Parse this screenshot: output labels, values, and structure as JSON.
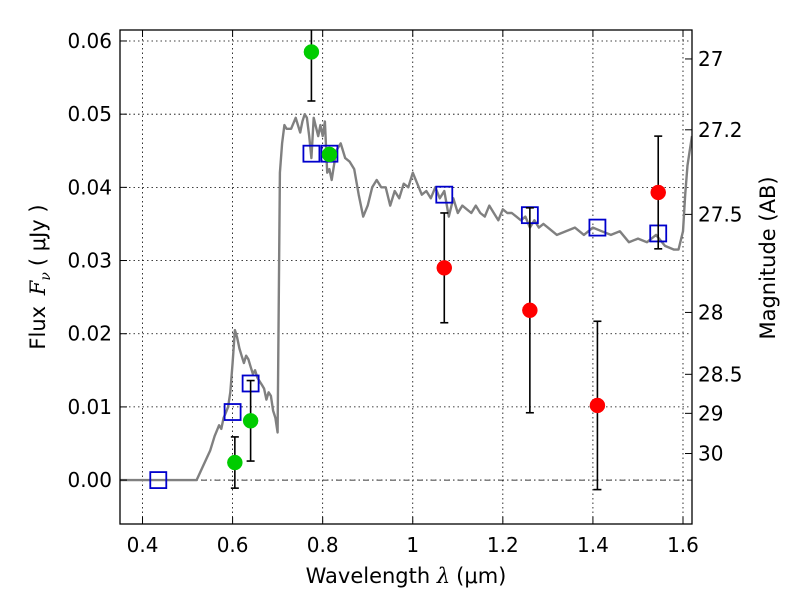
{
  "chart_data": {
    "type": "scatter",
    "xlabel": {
      "prefix": "Wavelength ",
      "symbol": "λ",
      "unit": "(μm)"
    },
    "ylabel": {
      "prefix": "Flux ",
      "symbol": "F",
      "sub": "ν",
      "unit": "( μJy )"
    },
    "y2label": "Magnitude (AB)",
    "xlim": [
      0.35,
      1.62
    ],
    "ylim": [
      -0.006,
      0.0615
    ],
    "grid": true,
    "x_ticks": [
      0.4,
      0.6,
      0.8,
      1.0,
      1.2,
      1.4,
      1.6
    ],
    "x_tick_labels": [
      "0.4",
      "0.6",
      "0.8",
      "1",
      "1.2",
      "1.4",
      "1.6"
    ],
    "y_ticks": [
      0.0,
      0.01,
      0.02,
      0.03,
      0.04,
      0.05,
      0.06
    ],
    "y_tick_labels": [
      "0.00",
      "0.01",
      "0.02",
      "0.03",
      "0.04",
      "0.05",
      "0.06"
    ],
    "mag_ticks": [
      27,
      27.2,
      27.5,
      28,
      28.5,
      29,
      30
    ],
    "mag_tick_labels": [
      "27",
      "27.2",
      "27.5",
      "28",
      "28.5",
      "29",
      "30"
    ],
    "series": [
      {
        "type": "line",
        "color": "#808080",
        "x": [
          0.35,
          0.52,
          0.535,
          0.55,
          0.56,
          0.57,
          0.575,
          0.58,
          0.585,
          0.59,
          0.595,
          0.6,
          0.605,
          0.61,
          0.615,
          0.62,
          0.625,
          0.63,
          0.635,
          0.64,
          0.645,
          0.65,
          0.655,
          0.66,
          0.665,
          0.67,
          0.675,
          0.68,
          0.685,
          0.69,
          0.695,
          0.7,
          0.705,
          0.71,
          0.715,
          0.72,
          0.73,
          0.74,
          0.75,
          0.755,
          0.76,
          0.765,
          0.77,
          0.775,
          0.78,
          0.79,
          0.795,
          0.8,
          0.805,
          0.81,
          0.815,
          0.82,
          0.83,
          0.84,
          0.85,
          0.86,
          0.87,
          0.88,
          0.89,
          0.9,
          0.91,
          0.92,
          0.93,
          0.94,
          0.95,
          0.96,
          0.97,
          0.98,
          0.99,
          1.0,
          1.01,
          1.02,
          1.03,
          1.04,
          1.05,
          1.06,
          1.07,
          1.08,
          1.09,
          1.1,
          1.11,
          1.12,
          1.13,
          1.14,
          1.15,
          1.16,
          1.17,
          1.18,
          1.19,
          1.2,
          1.21,
          1.22,
          1.23,
          1.24,
          1.25,
          1.26,
          1.27,
          1.28,
          1.29,
          1.3,
          1.32,
          1.34,
          1.36,
          1.38,
          1.4,
          1.42,
          1.44,
          1.46,
          1.48,
          1.5,
          1.52,
          1.54,
          1.56,
          1.58,
          1.59,
          1.6,
          1.605,
          1.61,
          1.615,
          1.62
        ],
        "y": [
          0.0,
          0.0,
          0.002,
          0.004,
          0.006,
          0.0075,
          0.007,
          0.0085,
          0.0092,
          0.01,
          0.012,
          0.016,
          0.0205,
          0.0195,
          0.018,
          0.017,
          0.016,
          0.017,
          0.0165,
          0.0155,
          0.0145,
          0.015,
          0.014,
          0.0135,
          0.013,
          0.0125,
          0.011,
          0.012,
          0.0115,
          0.0095,
          0.0085,
          0.0065,
          0.042,
          0.046,
          0.0485,
          0.048,
          0.048,
          0.0495,
          0.0475,
          0.049,
          0.05,
          0.0495,
          0.047,
          0.044,
          0.0495,
          0.047,
          0.0485,
          0.047,
          0.049,
          0.042,
          0.0425,
          0.041,
          0.045,
          0.046,
          0.044,
          0.0435,
          0.0425,
          0.039,
          0.036,
          0.0375,
          0.04,
          0.041,
          0.04,
          0.04,
          0.0375,
          0.0395,
          0.0385,
          0.0405,
          0.04,
          0.042,
          0.0405,
          0.039,
          0.0395,
          0.0385,
          0.04,
          0.0385,
          0.0395,
          0.036,
          0.0385,
          0.0365,
          0.0375,
          0.037,
          0.0365,
          0.0375,
          0.0365,
          0.036,
          0.0375,
          0.0365,
          0.0355,
          0.037,
          0.0365,
          0.0365,
          0.036,
          0.0355,
          0.036,
          0.0345,
          0.0355,
          0.0345,
          0.035,
          0.0345,
          0.0335,
          0.034,
          0.0345,
          0.0335,
          0.0345,
          0.034,
          0.0335,
          0.034,
          0.0325,
          0.033,
          0.0325,
          0.0335,
          0.032,
          0.0315,
          0.0315,
          0.034,
          0.039,
          0.043,
          0.045,
          0.047
        ]
      },
      {
        "type": "scatter",
        "marker": "square",
        "color": "#0000cc",
        "x": [
          0.435,
          0.6,
          0.64,
          0.775,
          0.815,
          1.07,
          1.26,
          1.41,
          1.545
        ],
        "y": [
          0.0,
          0.0093,
          0.0132,
          0.0446,
          0.0446,
          0.039,
          0.0362,
          0.0345,
          0.0337
        ]
      },
      {
        "type": "scatter",
        "marker": "circle",
        "color": "#00cc00",
        "x": [
          0.605,
          0.64,
          0.775,
          0.815
        ],
        "y": [
          0.0024,
          0.0081,
          0.0585,
          0.0445
        ],
        "err_low": [
          0.0035,
          0.0055,
          0.0067,
          null
        ],
        "err_high": [
          0.0035,
          0.0055,
          0.0067,
          null
        ]
      },
      {
        "type": "scatter",
        "marker": "circle",
        "color": "#ff0000",
        "x": [
          1.07,
          1.26,
          1.41,
          1.545
        ],
        "y": [
          0.029,
          0.0232,
          0.0102,
          0.0393
        ],
        "err_low": [
          0.0075,
          0.014,
          0.0115,
          0.0077
        ],
        "err_high": [
          0.0075,
          0.014,
          0.0115,
          0.0077
        ]
      }
    ]
  }
}
